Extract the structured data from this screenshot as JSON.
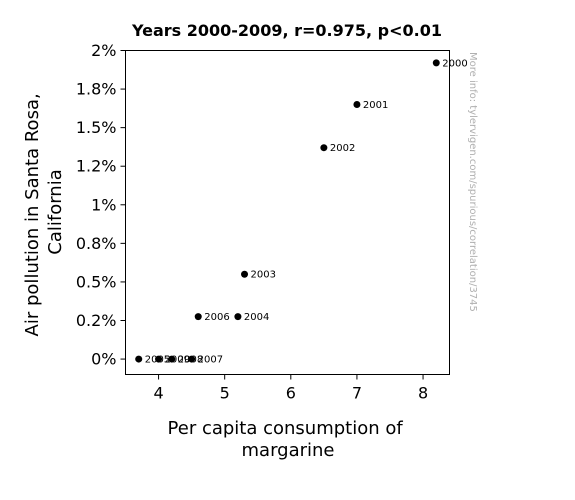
{
  "chart_data": {
    "type": "scatter",
    "title": "Years 2000-2009, r=0.975, p<0.01",
    "xlabel": [
      "Per capita consumption of",
      "margarine"
    ],
    "ylabel": [
      "Air pollution in Santa Rosa,",
      "California"
    ],
    "xlim": [
      3.5,
      8.4
    ],
    "ylim": [
      -0.001,
      0.02
    ],
    "x_ticks": [
      4,
      5,
      6,
      7,
      8
    ],
    "x_tick_labels": [
      "4",
      "5",
      "6",
      "7",
      "8"
    ],
    "y_ticks": [
      0,
      0.0025,
      0.005,
      0.0075,
      0.01,
      0.0125,
      0.015,
      0.0175,
      0.02
    ],
    "y_tick_labels": [
      "0%",
      "0.2%",
      "0.5%",
      "0.8%",
      "1%",
      "1.2%",
      "1.5%",
      "1.8%",
      "2%"
    ],
    "grid": false,
    "watermark": "More info: tylervigen.com/spurious/correlation/3745",
    "point_color": "#000000",
    "points": [
      {
        "label": "2000",
        "x": 8.2,
        "y": 0.0192
      },
      {
        "label": "2001",
        "x": 7.0,
        "y": 0.0165
      },
      {
        "label": "2002",
        "x": 6.5,
        "y": 0.0137
      },
      {
        "label": "2003",
        "x": 5.3,
        "y": 0.0055
      },
      {
        "label": "2004",
        "x": 5.2,
        "y": 0.00275
      },
      {
        "label": "2005",
        "x": 3.7,
        "y": 0.0
      },
      {
        "label": "2006",
        "x": 4.6,
        "y": 0.00275
      },
      {
        "label": "2007",
        "x": 4.5,
        "y": 0.0
      },
      {
        "label": "2008",
        "x": 4.2,
        "y": 0.0
      },
      {
        "label": "2009",
        "x": 4.0,
        "y": 0.0
      }
    ]
  }
}
